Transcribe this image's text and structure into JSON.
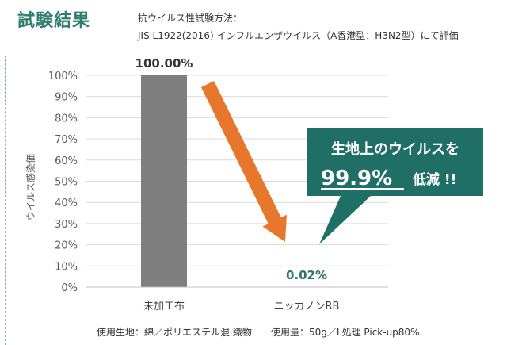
{
  "header": {
    "title": "試験結果",
    "method_label": "抗ウイルス性試験方法：",
    "method_detail": "JIS L1922(2016) インフルエンザウイルス（A香港型：H3N2型）にて評価"
  },
  "callout": {
    "line1": "生地上のウイルスを",
    "highlight": "99.9%",
    "line2_suffix": "低減 !!"
  },
  "footnotes": {
    "material": "使用生地：綿／ポリエステル混 織物",
    "usage": "使用量：50g／L処理 Pick-up80%"
  },
  "colors": {
    "title": "#2e7d6e",
    "bar_control": "#7f7f7f",
    "arrow": "#e8772e",
    "callout_bg": "#1f6f66",
    "value_label_treated": "#2f7566"
  },
  "chart_data": {
    "type": "bar",
    "categories": [
      "未加工布",
      "ニッカノンRB"
    ],
    "values": [
      100.0,
      0.02
    ],
    "value_labels": [
      "100.00%",
      "0.02%"
    ],
    "ylabel": "ウイルス感染価",
    "ylim": [
      0,
      100
    ],
    "yticks": [
      0,
      10,
      20,
      30,
      40,
      50,
      60,
      70,
      80,
      90,
      100
    ],
    "ytick_labels": [
      "0%",
      "10%",
      "20%",
      "30%",
      "40%",
      "50%",
      "60%",
      "70%",
      "80%",
      "90%",
      "100%"
    ],
    "grid": true,
    "legend": "none"
  }
}
